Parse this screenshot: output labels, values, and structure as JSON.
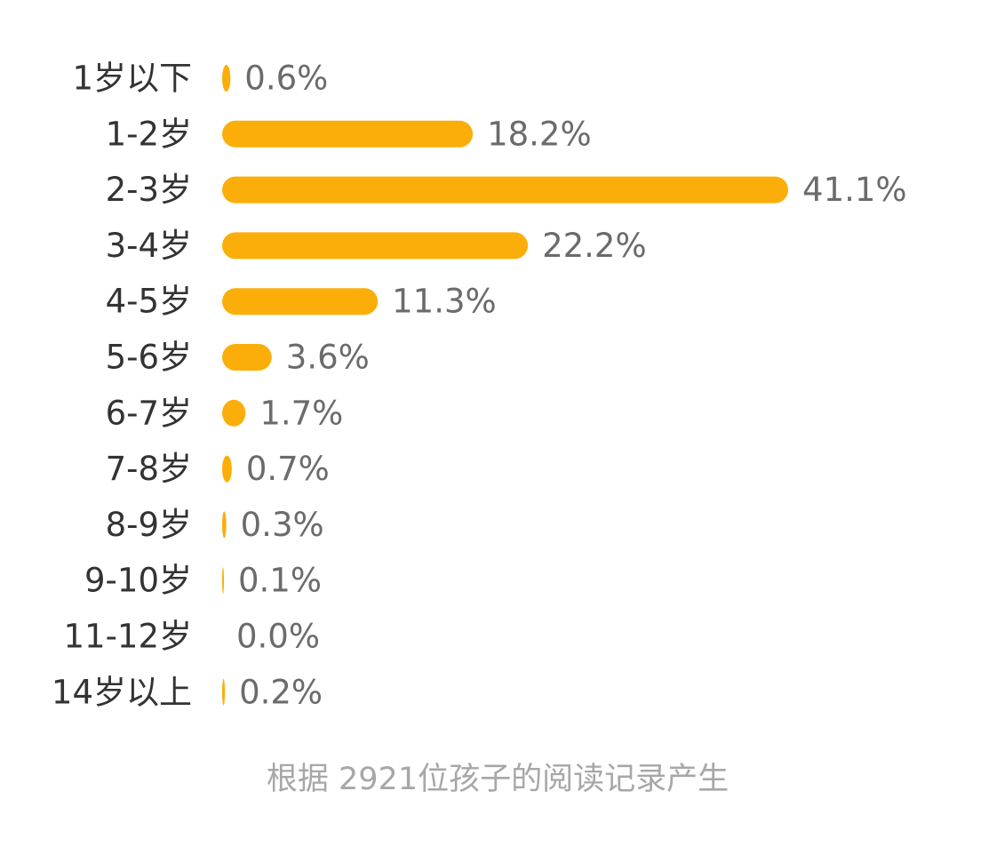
{
  "chart_data": {
    "type": "bar",
    "orientation": "horizontal",
    "categories": [
      "1岁以下",
      "1-2岁",
      "2-3岁",
      "3-4岁",
      "4-5岁",
      "5-6岁",
      "6-7岁",
      "7-8岁",
      "8-9岁",
      "9-10岁",
      "11-12岁",
      "14岁以上"
    ],
    "values": [
      0.6,
      18.2,
      41.1,
      22.2,
      11.3,
      3.6,
      1.7,
      0.7,
      0.3,
      0.1,
      0.0,
      0.2
    ],
    "value_labels": [
      "0.6%",
      "18.2%",
      "41.1%",
      "22.2%",
      "11.3%",
      "3.6%",
      "1.7%",
      "0.7%",
      "0.3%",
      "0.1%",
      "0.0%",
      "0.2%"
    ],
    "unit": "%",
    "bar_color": "#FBAE0A",
    "grid": false,
    "legend": "none"
  },
  "footnote": "根据 2921位孩子的阅读记录产生"
}
